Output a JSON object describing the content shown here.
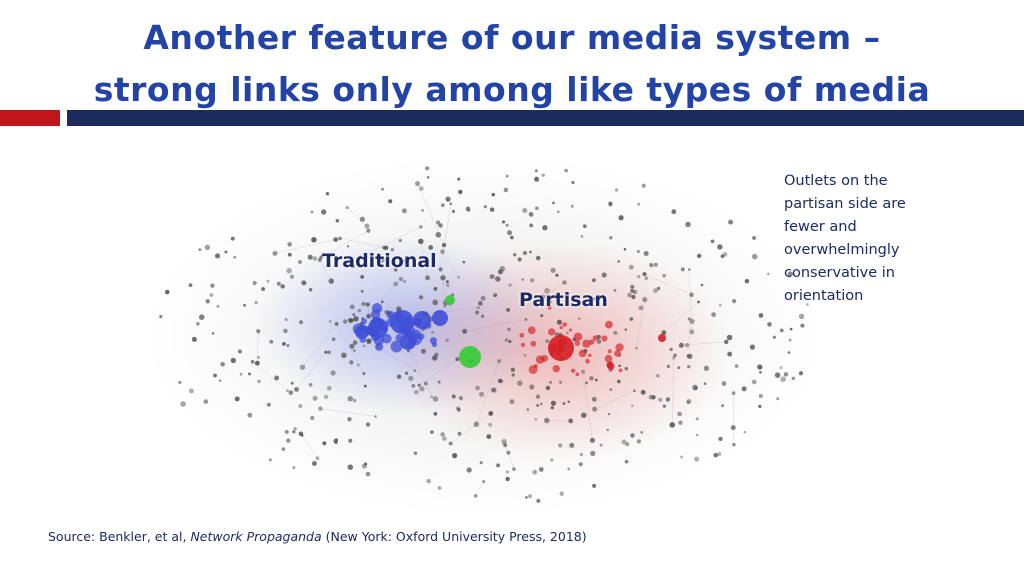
{
  "slide": {
    "title_line1": "Another feature of our media system –",
    "title_line2": "strong links only among like types of media"
  },
  "diagram": {
    "traditional_label": "Traditional",
    "partisan_label": "Partisan",
    "traditional_color": "#3f4fd6",
    "partisan_color": "#d41f24",
    "highlight_color": "#33cc33",
    "node_color": "#555555",
    "edge_color": "#b8b8b8"
  },
  "note": {
    "text": "Outlets on the partisan side are fewer and overwhelmingly conservative in orientation"
  },
  "source": {
    "prefix": "Source: Benkler, et al, ",
    "book": "Network Propaganda",
    "suffix": " (New York: Oxford University Press, 2018)"
  }
}
